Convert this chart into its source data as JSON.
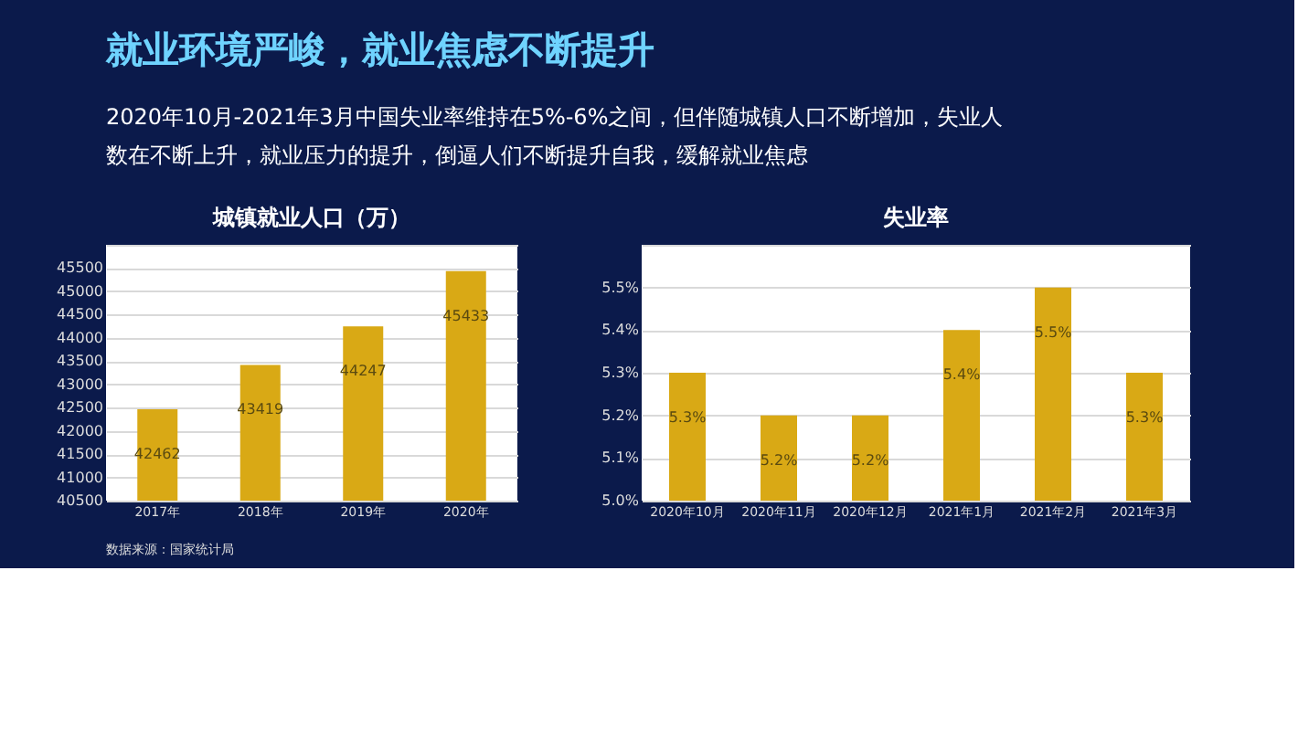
{
  "chart_data": [
    {
      "type": "bar",
      "title": "城镇就业人口（万）",
      "categories": [
        "2017年",
        "2018年",
        "2019年",
        "2020年"
      ],
      "values": [
        42462,
        43419,
        44247,
        45433
      ],
      "color": "#d9a915",
      "data_labels": true,
      "ylim": [
        40500,
        46000
      ],
      "yticks": [
        40500,
        41000,
        41500,
        42000,
        42500,
        43000,
        43500,
        44000,
        44500,
        45000,
        45500,
        {
          "value": 46000,
          "label": null
        }
      ],
      "grid": "y",
      "annotations": [
        "就业环境严峻，就业焦虑不断提升",
        "2020年10月-2021年3月中国失业率维持在5%-6%之间，但伴随城镇人口不断增加，失业人数在不断上升，就业压力的提升，倒逼人们不断提升自我，缓解就业焦虑",
        "数据来源：国家统计局"
      ]
    },
    {
      "type": "bar",
      "title": "失业率",
      "categories": [
        "2020年10月",
        "2020年11月",
        "2020年12月",
        "2021年1月",
        "2021年2月",
        "2021年3月"
      ],
      "values": [
        5.3,
        5.2,
        5.2,
        5.4,
        5.5,
        5.3
      ],
      "value_labels": [
        "5.3%",
        "5.2%",
        "5.2%",
        "5.4%",
        "5.5%",
        "5.3%"
      ],
      "color": "#d9a915",
      "ylim": [
        5.0,
        5.6
      ],
      "yticks": [
        {
          "value": 5.0,
          "label": "5.0%"
        },
        {
          "value": 5.1,
          "label": "5.1%"
        },
        {
          "value": 5.2,
          "label": "5.2%"
        },
        {
          "value": 5.3,
          "label": "5.3%"
        },
        {
          "value": 5.4,
          "label": "5.4%"
        },
        {
          "value": 5.5,
          "label": "5.5%"
        },
        {
          "value": 5.6,
          "label": null
        }
      ],
      "grid": "y"
    }
  ]
}
